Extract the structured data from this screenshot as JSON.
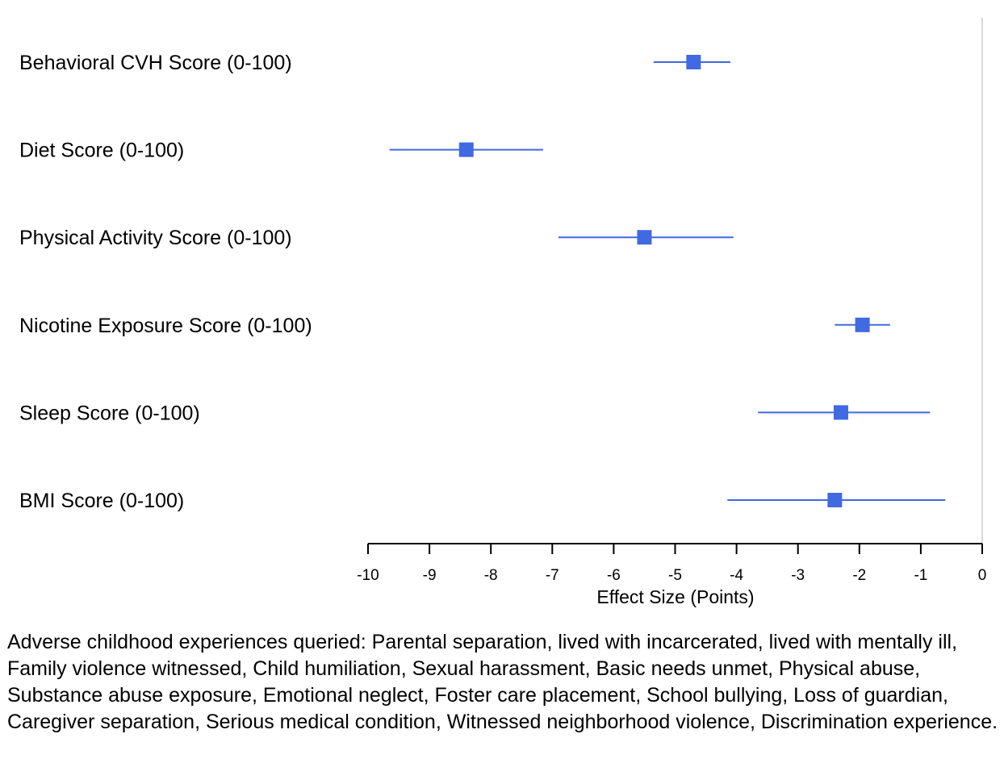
{
  "chart_data": {
    "type": "forest",
    "categories": [
      "Behavioral CVH Score (0-100)",
      "Diet Score (0-100)",
      "Physical Activity Score (0-100)",
      "Nicotine Exposure Score (0-100)",
      "Sleep Score (0-100)",
      "BMI Score (0-100)"
    ],
    "estimates": [
      -4.7,
      -8.4,
      -5.5,
      -1.95,
      -2.3,
      -2.4
    ],
    "ci_lower": [
      -5.35,
      -9.65,
      -6.9,
      -2.4,
      -3.65,
      -4.15
    ],
    "ci_upper": [
      -4.1,
      -7.15,
      -4.05,
      -1.5,
      -0.85,
      -0.6
    ],
    "xlabel": "Effect Size (Points)",
    "xlim": [
      -10,
      0
    ],
    "xticks": [
      -10,
      -9,
      -8,
      -7,
      -6,
      -5,
      -4,
      -3,
      -2,
      -1,
      0
    ],
    "xtick_labels": [
      "-10",
      "-9",
      "-8",
      "-7",
      "-6",
      "-5",
      "-4",
      "-3",
      "-2",
      "-1",
      "0"
    ],
    "reference_line": 0,
    "marker_color": "#4169E1",
    "line_color": "#4169E1"
  },
  "footnote": "Adverse childhood experiences queried: Parental separation, lived with incarcerated, lived with mentally ill, Family violence witnessed, Child humiliation, Sexual harassment, Basic needs unmet, Physical abuse, Substance abuse exposure, Emotional neglect, Foster care placement, School bullying, Loss of guardian, Caregiver separation, Serious medical condition, Witnessed neighborhood violence, Discrimination experience."
}
